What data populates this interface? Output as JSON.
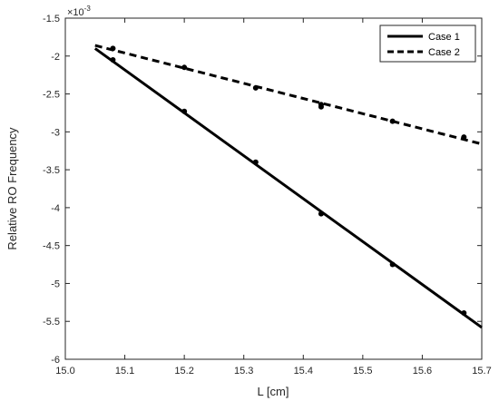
{
  "chart_data": {
    "type": "line",
    "title": "",
    "xlabel": "L [cm]",
    "ylabel": "Relative RO Frequency",
    "y_multiplier_text": "×10",
    "y_multiplier_exp": "-3",
    "xlim": [
      15.0,
      15.7
    ],
    "ylim": [
      -6,
      -1.5
    ],
    "x_ticks": [
      "15.0",
      "15.1",
      "15.2",
      "15.3",
      "15.4",
      "15.5",
      "15.6",
      "15.7"
    ],
    "x_tick_values": [
      15.0,
      15.1,
      15.2,
      15.3,
      15.4,
      15.5,
      15.6,
      15.7
    ],
    "y_ticks": [
      "-1.5",
      "-2",
      "-2.5",
      "-3",
      "-3.5",
      "-4",
      "-4.5",
      "-5",
      "-5.5",
      "-6"
    ],
    "y_tick_values": [
      -1.5,
      -2,
      -2.5,
      -3,
      -3.5,
      -4,
      -4.5,
      -5,
      -5.5,
      -6
    ],
    "grid": false,
    "legend_position": "top-right",
    "series": [
      {
        "name": "Case 1",
        "line_style": "solid",
        "color": "#000000",
        "fit_line": {
          "x": [
            15.05,
            15.7
          ],
          "y": [
            -1.9,
            -5.58
          ]
        },
        "points": {
          "x": [
            15.08,
            15.2,
            15.32,
            15.43,
            15.55,
            15.67
          ],
          "y": [
            -2.05,
            -2.73,
            -3.4,
            -4.08,
            -4.75,
            -5.39
          ]
        }
      },
      {
        "name": "Case 2",
        "line_style": "dashed",
        "color": "#000000",
        "fit_line": {
          "x": [
            15.05,
            15.7
          ],
          "y": [
            -1.86,
            -3.16
          ]
        },
        "points": {
          "x": [
            15.08,
            15.2,
            15.32,
            15.43,
            15.43,
            15.55,
            15.67
          ],
          "y": [
            -1.9,
            -2.15,
            -2.42,
            -2.64,
            -2.67,
            -2.86,
            -3.07
          ]
        }
      }
    ]
  }
}
